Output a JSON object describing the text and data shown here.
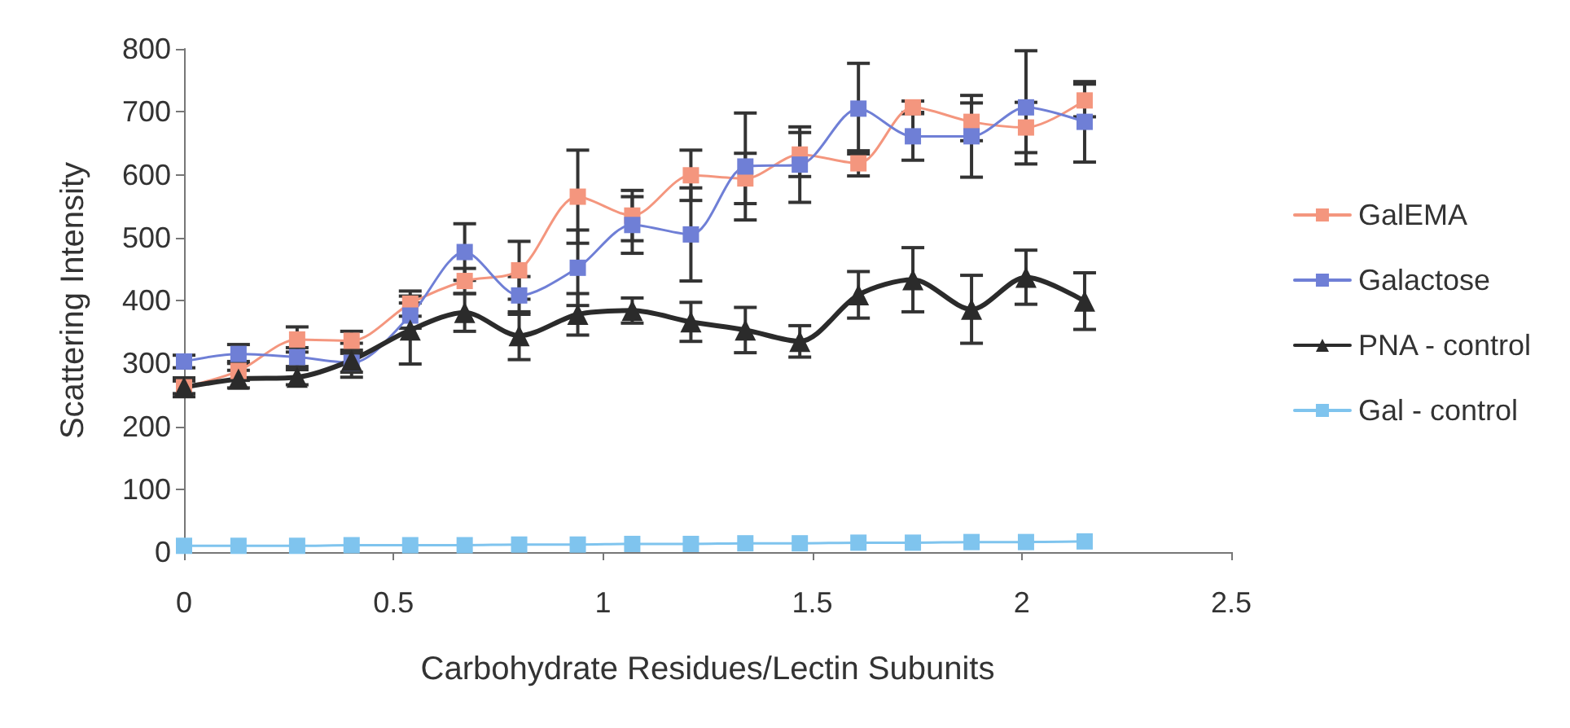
{
  "chart_data": {
    "type": "line",
    "xlabel": "Carbohydrate Residues/Lectin Subunits",
    "ylabel": "Scattering Intensity",
    "x": [
      0,
      0.13,
      0.27,
      0.4,
      0.54,
      0.67,
      0.8,
      0.94,
      1.07,
      1.21,
      1.34,
      1.47,
      1.61,
      1.74,
      1.88,
      2.01,
      2.15
    ],
    "xlim": [
      0,
      2.5
    ],
    "xticks": [
      0,
      0.5,
      1,
      1.5,
      2,
      2.5
    ],
    "ylim": [
      0,
      800
    ],
    "yticks": [
      0,
      100,
      200,
      300,
      400,
      500,
      600,
      700,
      800
    ],
    "grid": false,
    "legend": "right",
    "line_style": "solid",
    "series": [
      {
        "name": "GalEMA",
        "color": "#f4967e",
        "marker": "square",
        "values": [
          262,
          288,
          338,
          336,
          395,
          431,
          448,
          565,
          535,
          599,
          594,
          632,
          618,
          707,
          684,
          675,
          718
        ],
        "errors": [
          10,
          15,
          20,
          15,
          20,
          20,
          46,
          74,
          40,
          40,
          40,
          35,
          20,
          10,
          30,
          40,
          26
        ]
      },
      {
        "name": "Galactose",
        "color": "#6f7fd6",
        "marker": "square",
        "values": [
          303,
          315,
          310,
          301,
          376,
          477,
          408,
          452,
          520,
          505,
          613,
          616,
          705,
          661,
          661,
          707,
          684
        ],
        "errors": [
          10,
          15,
          15,
          15,
          20,
          45,
          30,
          60,
          45,
          74,
          85,
          60,
          72,
          38,
          65,
          90,
          64
        ]
      },
      {
        "name": "PNA - control",
        "color": "#2b2b2b",
        "marker": "triangle",
        "values": [
          262,
          275,
          278,
          305,
          353,
          381,
          344,
          378,
          384,
          366,
          353,
          335,
          409,
          433,
          386,
          437,
          399
        ],
        "errors": [
          15,
          14,
          12,
          27,
          54,
          30,
          38,
          33,
          20,
          31,
          36,
          25,
          37,
          51,
          54,
          43,
          45
        ]
      },
      {
        "name": "Gal - control",
        "color": "#7fc4ee",
        "marker": "square",
        "values": [
          10,
          10,
          10,
          11,
          11,
          11,
          12,
          12,
          13,
          13,
          14,
          14,
          15,
          15,
          16,
          16,
          17
        ]
      }
    ]
  }
}
